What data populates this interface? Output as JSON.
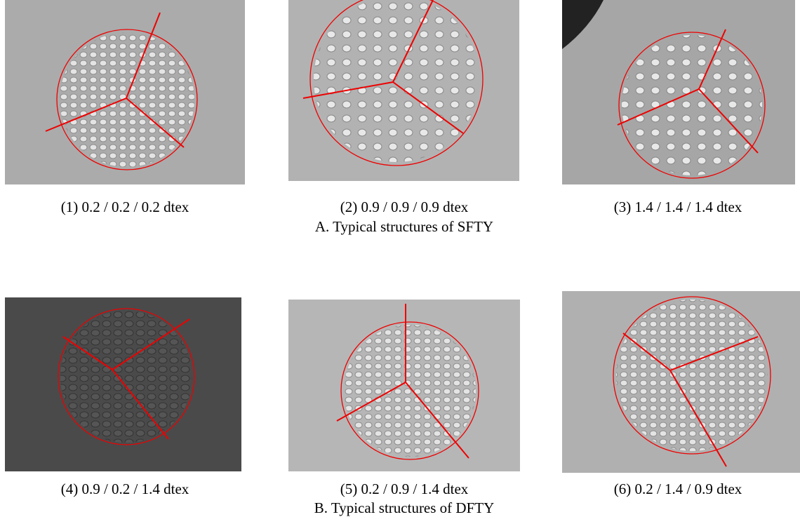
{
  "figure": {
    "groups": [
      {
        "caption": "A. Typical structures of SFTY",
        "panels": [
          {
            "caption": "(1) 0.2 / 0.2 / 0.2 dtex"
          },
          {
            "caption": "(2) 0.9 / 0.9 / 0.9 dtex"
          },
          {
            "caption": "(3) 1.4 / 1.4 / 1.4 dtex"
          }
        ]
      },
      {
        "caption": "B. Typical structures of DFTY",
        "panels": [
          {
            "caption": "(4) 0.9 / 0.2 / 1.4 dtex"
          },
          {
            "caption": "(5) 0.2 / 0.9 / 1.4 dtex"
          },
          {
            "caption": "(6) 0.2 / 1.4 / 0.9 dtex"
          }
        ]
      }
    ]
  }
}
